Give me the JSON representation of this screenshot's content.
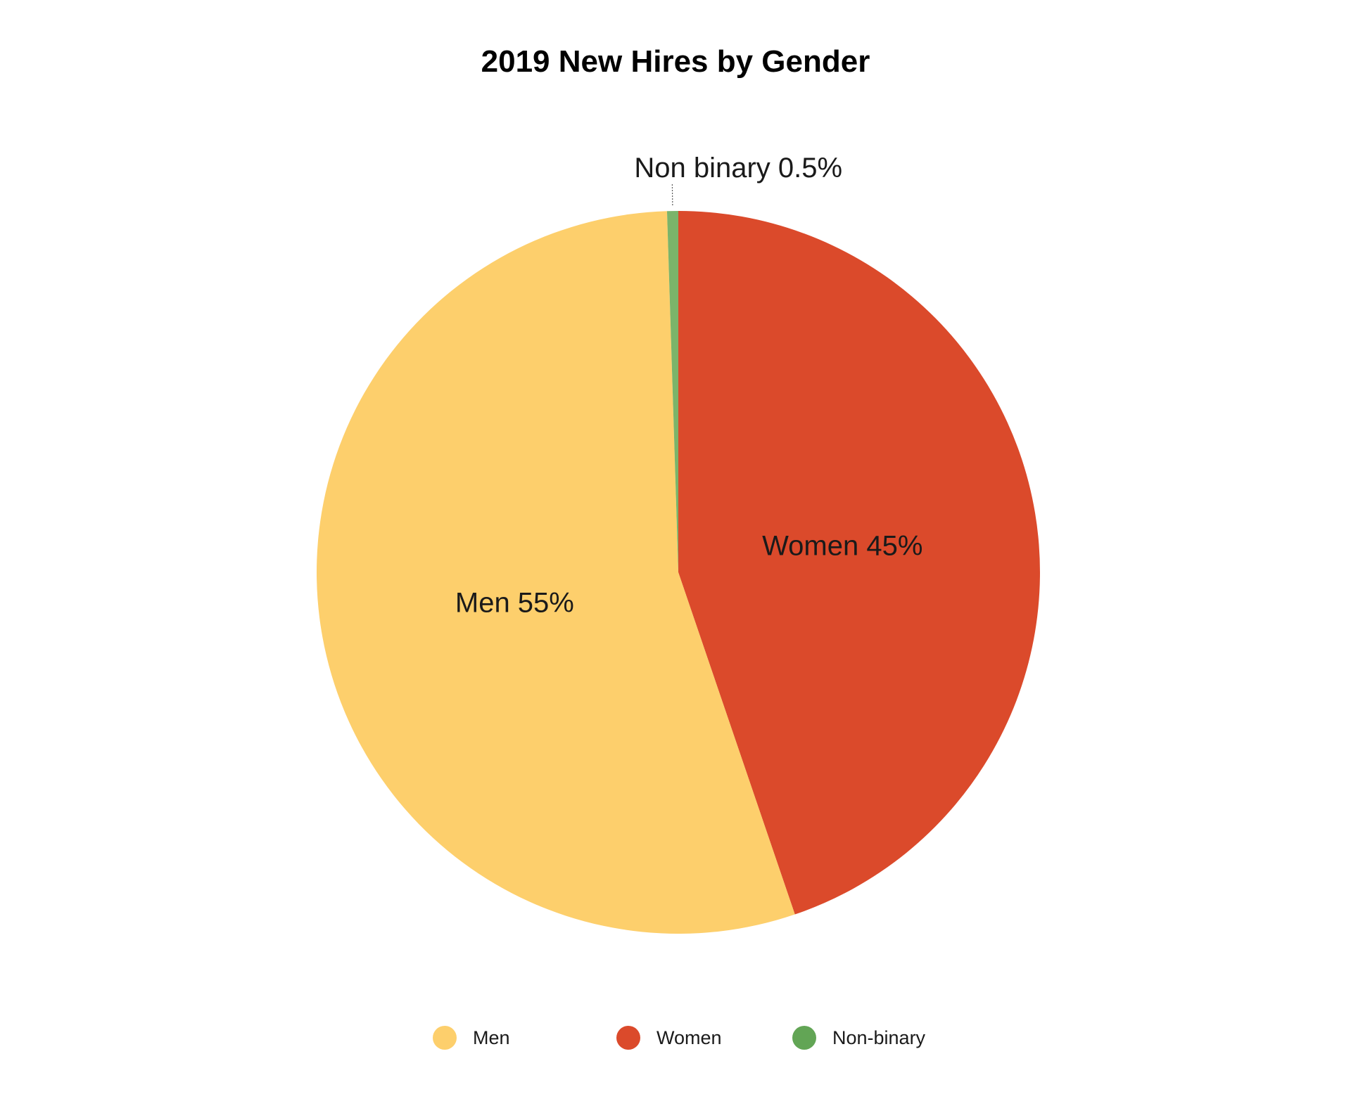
{
  "chart_data": {
    "type": "pie",
    "title": "2019 New Hires by Gender",
    "slices": [
      {
        "label": "Women 45%",
        "legend": "Women",
        "value": 45,
        "color": "#DB4A2B"
      },
      {
        "label": "Men 55%",
        "legend": "Men",
        "value": 55,
        "color": "#FDCF6C"
      },
      {
        "label": "Non binary 0.5%",
        "legend": "Non-binary",
        "value": 0.5,
        "color": "#7BB46A"
      }
    ],
    "legend": {
      "position": "bottom",
      "items": [
        {
          "label": "Men",
          "color": "#FDCF6C"
        },
        {
          "label": "Women",
          "color": "#DB4A2B"
        },
        {
          "label": "Non-binary",
          "color": "#62A555"
        }
      ]
    }
  }
}
